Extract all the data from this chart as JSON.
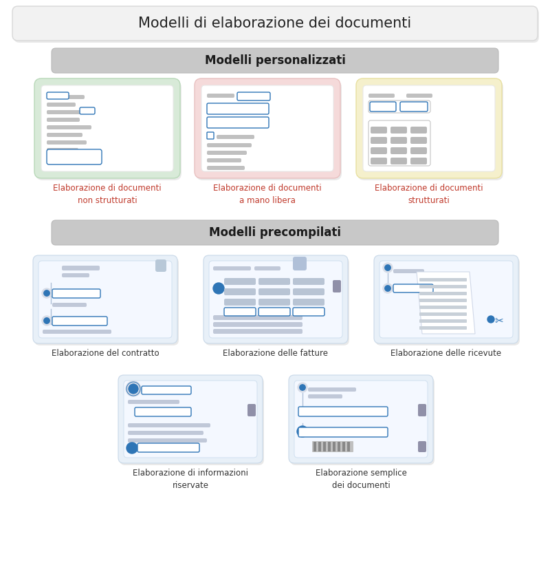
{
  "title": "Modelli di elaborazione dei documenti",
  "section1_title": "Modelli personalizzati",
  "section2_title": "Modelli precompilati",
  "custom_models": [
    {
      "label": "Elaborazione di documenti\nnon strutturati",
      "bg_color": "#d8ead8",
      "border_color": "#b8d8b8"
    },
    {
      "label": "Elaborazione di documenti\na mano libera",
      "bg_color": "#f5dada",
      "border_color": "#e8c0c0"
    },
    {
      "label": "Elaborazione di documenti\nstrutturati",
      "bg_color": "#f5f0cc",
      "border_color": "#e8e0a0"
    }
  ],
  "prebuilt_models_row1": [
    {
      "label": "Elaborazione del contratto"
    },
    {
      "label": "Elaborazione delle fatture"
    },
    {
      "label": "Elaborazione delle ricevute"
    }
  ],
  "prebuilt_models_row2": [
    {
      "label": "Elaborazione di informazioni\nriservate"
    },
    {
      "label": "Elaborazione semplice\ndei documenti"
    }
  ],
  "bg_color": "#ffffff",
  "title_box_bg": "#f2f2f2",
  "title_box_border": "#d8d8d8",
  "section_header_bg": "#c8c8c8",
  "section_header_border": "#b8b8b8",
  "prebuilt_box_bg": "#e8f0f8",
  "prebuilt_box_border": "#c8d8e8",
  "text_color": "#222222",
  "label_color_custom": "#c0392b",
  "label_color_prebuilt": "#333333",
  "blue_color": "#2e75b6",
  "gray_bar": "#c0c0c0",
  "gray_bar2": "#b0b0b8",
  "doc_bg": "#ffffff",
  "doc_border": "#e0e0e0"
}
